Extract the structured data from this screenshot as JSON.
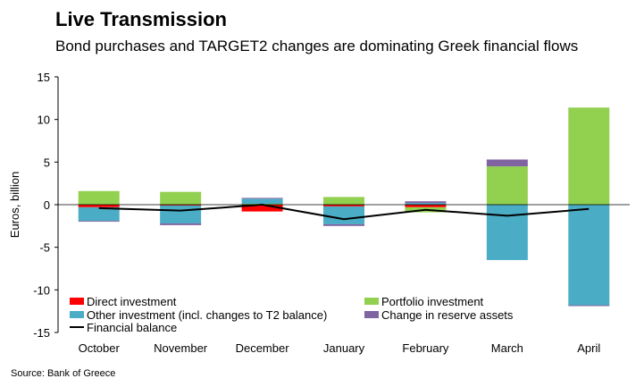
{
  "header": {
    "title": "Live Transmission",
    "subtitle": "Bond purchases and TARGET2 changes are dominating Greek financial flows"
  },
  "footer": {
    "source": "Source: Bank of Greece"
  },
  "chart_data": {
    "type": "bar",
    "stacked": true,
    "categories": [
      "October",
      "November",
      "December",
      "January",
      "February",
      "March",
      "April"
    ],
    "ylabel": "Euros, billion",
    "xlabel": "",
    "ylim": [
      -15,
      15
    ],
    "yticks": [
      15,
      10,
      5,
      0,
      -5,
      -10,
      -15
    ],
    "grid": false,
    "legend_position": "bottom-left",
    "series": [
      {
        "name": "Direct investment",
        "kind": "bar",
        "color": "#ff0000",
        "values": [
          -0.3,
          -0.1,
          -0.8,
          -0.2,
          -0.3,
          0,
          0
        ]
      },
      {
        "name": "Portfolio investment",
        "kind": "bar",
        "color": "#92d050",
        "values": [
          1.6,
          1.5,
          0.1,
          0.9,
          -0.6,
          4.5,
          11.4
        ]
      },
      {
        "name": "Other investment (incl. changes to T2 balance)",
        "kind": "bar",
        "color": "#4bacc6",
        "values": [
          -1.6,
          -2.1,
          0.6,
          -2.1,
          0.2,
          -6.5,
          -11.8
        ]
      },
      {
        "name": "Change in reserve assets",
        "kind": "bar",
        "color": "#8064a2",
        "values": [
          -0.1,
          -0.2,
          0.1,
          -0.2,
          0.2,
          0.8,
          -0.1
        ]
      },
      {
        "name": "Financial balance",
        "kind": "line",
        "color": "#000000",
        "values": [
          -0.4,
          -0.7,
          0.0,
          -1.7,
          -0.6,
          -1.3,
          -0.5
        ]
      }
    ]
  }
}
